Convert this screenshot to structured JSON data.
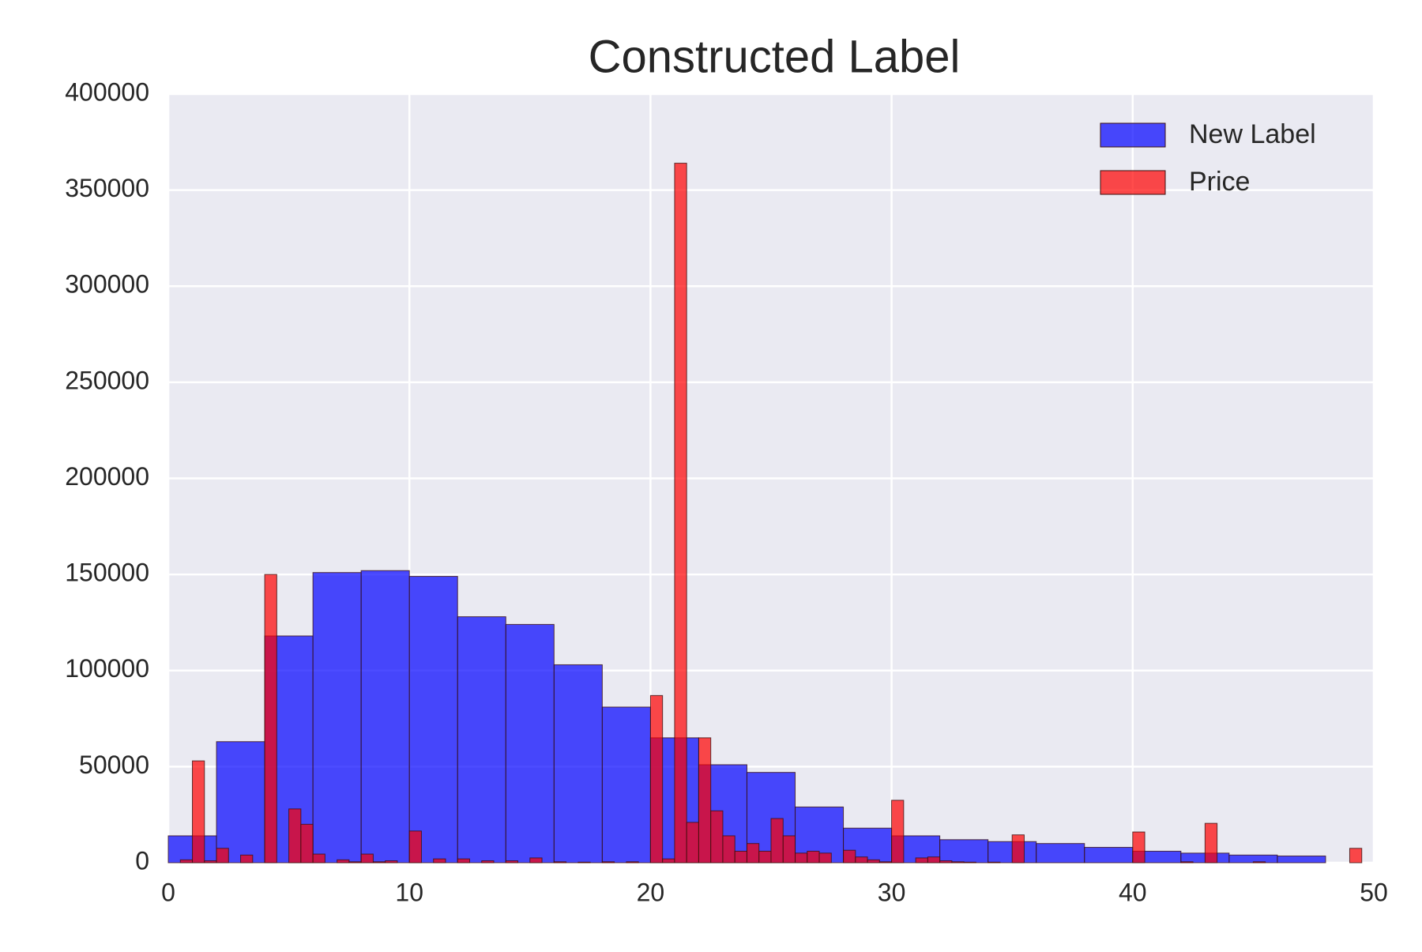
{
  "chart_data": {
    "type": "histogram",
    "title": "Constructed Label",
    "xlim": [
      0,
      50
    ],
    "xticks": [
      0,
      10,
      20,
      30,
      40,
      50
    ],
    "ylim": [
      0,
      400000
    ],
    "yticks": [
      0,
      50000,
      100000,
      150000,
      200000,
      250000,
      300000,
      350000,
      400000
    ],
    "grid": true,
    "legend": "upper right",
    "series": [
      {
        "name": "New Label",
        "color": "#0000ff",
        "bins": [
          0,
          2,
          4,
          6,
          8,
          10,
          12,
          14,
          16,
          18,
          20,
          22,
          24,
          26,
          28,
          30,
          32,
          34,
          36,
          38,
          40,
          42,
          44,
          46,
          48,
          50
        ],
        "values": [
          14000,
          63000,
          118000,
          151000,
          152000,
          149000,
          128000,
          124000,
          103000,
          81000,
          65000,
          51000,
          47000,
          29000,
          18000,
          14000,
          12000,
          11000,
          10000,
          8000,
          6000,
          5000,
          4000,
          3500,
          0
        ]
      },
      {
        "name": "Price",
        "color": "#ff0000",
        "bins": [
          0,
          0.5,
          1,
          1.5,
          2,
          2.5,
          3,
          3.5,
          4,
          4.5,
          5,
          5.5,
          6,
          6.5,
          7,
          7.5,
          8,
          8.5,
          9,
          9.5,
          10,
          10.5,
          11,
          11.5,
          12,
          12.5,
          13,
          13.5,
          14,
          14.5,
          15,
          15.5,
          16,
          16.5,
          17,
          17.5,
          18,
          18.5,
          19,
          19.5,
          20,
          20.5,
          21,
          21.5,
          22,
          22.5,
          23,
          23.5,
          24,
          24.5,
          25,
          25.5,
          26,
          26.5,
          27,
          27.5,
          28,
          28.5,
          29,
          29.5,
          30,
          30.5,
          31,
          31.5,
          32,
          32.5,
          33,
          33.5,
          34,
          34.5,
          35,
          35.5,
          36,
          36.5,
          37,
          37.5,
          38,
          38.5,
          39,
          39.5,
          40,
          40.5,
          41,
          41.5,
          42,
          42.5,
          43,
          43.5,
          44,
          44.5,
          45,
          45.5,
          46,
          46.5,
          47,
          47.5,
          48,
          48.5,
          49,
          49.5,
          50
        ],
        "values": [
          0,
          1500,
          53000,
          1000,
          7500,
          0,
          4000,
          0,
          150000,
          0,
          28000,
          20000,
          4500,
          0,
          1500,
          500,
          4500,
          500,
          1000,
          0,
          16500,
          0,
          2000,
          0,
          2000,
          0,
          1000,
          0,
          1000,
          0,
          2500,
          0,
          500,
          0,
          300,
          0,
          500,
          0,
          500,
          0,
          87000,
          2000,
          364000,
          21000,
          65000,
          27000,
          14000,
          6000,
          10000,
          6000,
          23000,
          14000,
          5000,
          6000,
          5000,
          0,
          6500,
          3000,
          1500,
          500,
          32500,
          0,
          2500,
          3000,
          1000,
          500,
          300,
          0,
          300,
          0,
          14500,
          0,
          0,
          0,
          0,
          0,
          0,
          0,
          0,
          0,
          16000,
          0,
          0,
          0,
          500,
          0,
          20500,
          0,
          0,
          0,
          500,
          0,
          0,
          0,
          0,
          0,
          0,
          0,
          7500,
          0
        ]
      }
    ]
  }
}
